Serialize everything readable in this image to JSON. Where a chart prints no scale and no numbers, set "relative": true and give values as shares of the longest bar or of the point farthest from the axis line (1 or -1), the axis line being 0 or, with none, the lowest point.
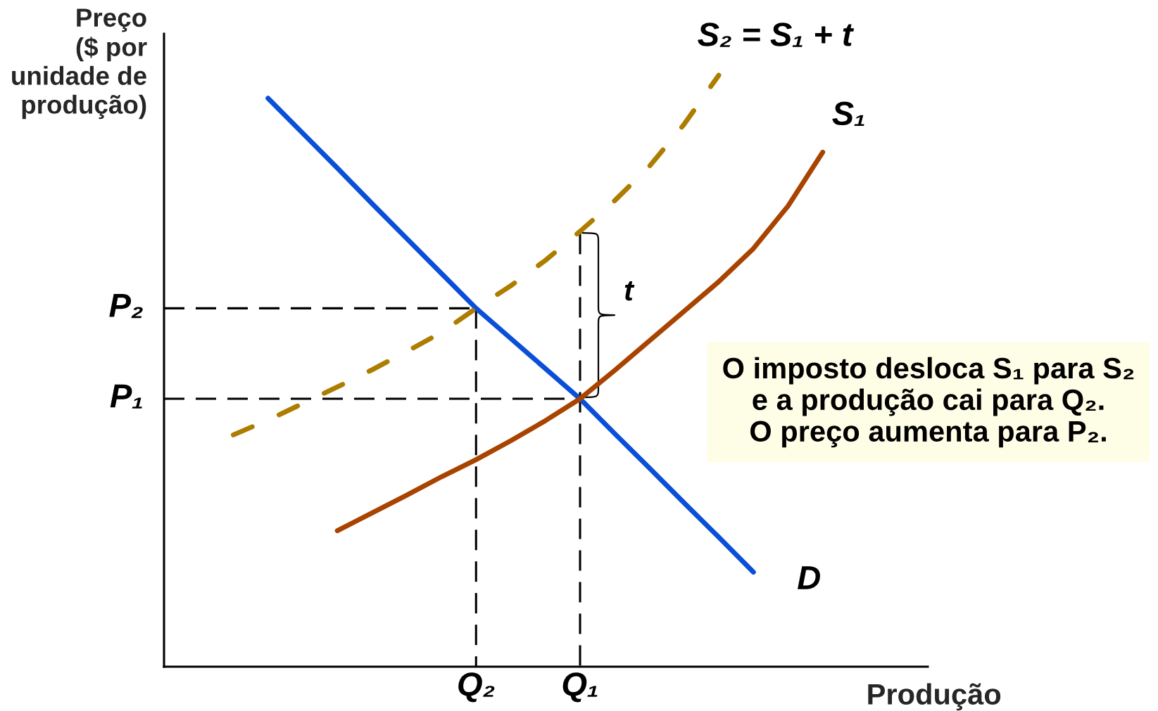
{
  "chart_data": {
    "type": "line",
    "relative": true,
    "xlabel": "Produção",
    "ylabel": "Preço\n($ por\nunidade de\nprodução)",
    "categories": [
      null,
      null,
      null,
      null,
      null,
      null,
      null,
      null,
      null,
      "Q₂",
      null,
      null,
      "Q₁",
      null,
      null,
      null,
      null,
      null,
      null,
      null
    ],
    "series": [
      {
        "name": "D",
        "color": "#0a4fd8",
        "line_style": "solid",
        "values": [
          null,
          null,
          null,
          0.961,
          0.902,
          0.843,
          0.783,
          0.724,
          0.665,
          0.606,
          0.555,
          0.504,
          0.453,
          0.394,
          0.336,
          0.277,
          0.219,
          0.16,
          null,
          null
        ]
      },
      {
        "name": "S₁",
        "color": "#a84300",
        "line_style": "solid",
        "values": [
          null,
          null,
          null,
          null,
          null,
          0.23,
          0.26,
          0.29,
          0.321,
          0.35,
          0.382,
          0.416,
          0.453,
          0.501,
          0.551,
          0.601,
          0.651,
          0.707,
          0.779,
          0.87
        ]
      },
      {
        "name": "S₂ = S₁ + t",
        "color": "#ad7d00",
        "line_style": "dashed",
        "values": [
          null,
          null,
          0.392,
          0.417,
          0.445,
          0.473,
          0.502,
          0.533,
          0.565,
          0.606,
          0.644,
          0.687,
          0.736,
          0.788,
          0.846,
          0.917,
          1.0,
          null,
          null,
          null
        ]
      },
      {
        "name": "P₂",
        "color": "#000000",
        "line_style": "dashed",
        "values": [
          0.606,
          0.606,
          0.606,
          0.606,
          0.606,
          0.606,
          0.606,
          0.606,
          0.606,
          0.606,
          null,
          null,
          null,
          null,
          null,
          null,
          null,
          null,
          null,
          null
        ]
      },
      {
        "name": "P₁",
        "color": "#000000",
        "line_style": "dashed",
        "values": [
          0.453,
          0.453,
          0.453,
          0.453,
          0.453,
          0.453,
          0.453,
          0.453,
          0.453,
          0.453,
          0.453,
          0.453,
          0.453,
          null,
          null,
          null,
          null,
          null,
          null,
          null
        ]
      },
      {
        "color": "#000000",
        "line_style": "dashed",
        "x": [
          "Q₂",
          "Q₂"
        ],
        "values": [
          0.606,
          0
        ]
      },
      {
        "color": "#000000",
        "line_style": "dashed",
        "x": [
          "Q₁",
          "Q₁"
        ],
        "values": [
          0.732,
          0
        ]
      }
    ],
    "annotations": [
      {
        "text": "t",
        "x": "Q₁",
        "y": 0.606
      },
      "O imposto desloca S₁ para S₂\ne a produção cai para Q₂.\nO preço aumenta para P₂."
    ]
  }
}
